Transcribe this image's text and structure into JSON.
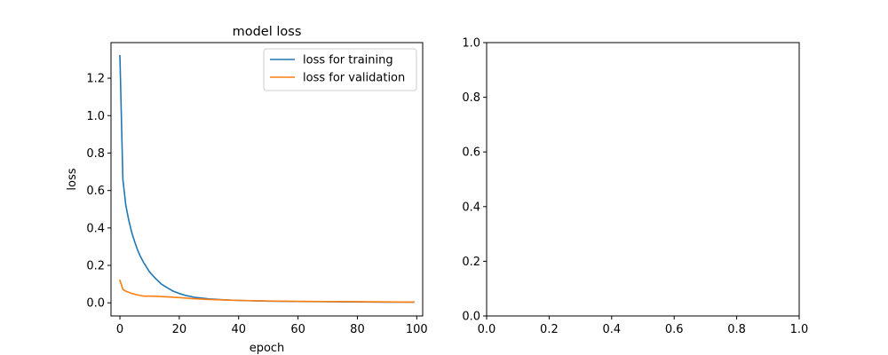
{
  "chart_data": [
    {
      "type": "line",
      "title": "model loss",
      "xlabel": "epoch",
      "ylabel": "loss",
      "xlim": [
        -3,
        102
      ],
      "ylim": [
        -0.07,
        1.39
      ],
      "xticks": [
        0,
        20,
        40,
        60,
        80,
        100
      ],
      "yticks": [
        0.0,
        0.2,
        0.4,
        0.6,
        0.8,
        1.0,
        1.2
      ],
      "xtick_labels": [
        "0",
        "20",
        "40",
        "60",
        "80",
        "100"
      ],
      "ytick_labels": [
        "0.0",
        "0.2",
        "0.4",
        "0.6",
        "0.8",
        "1.0",
        "1.2"
      ],
      "grid": false,
      "legend": "upper right",
      "series": [
        {
          "name": "loss for training",
          "color": "#1f77b4",
          "x": [
            0,
            1,
            2,
            3,
            4,
            5,
            6,
            7,
            8,
            10,
            12,
            14,
            16,
            18,
            20,
            22,
            25,
            30,
            35,
            40,
            45,
            50,
            60,
            70,
            80,
            90,
            99
          ],
          "y": [
            1.32,
            0.66,
            0.52,
            0.44,
            0.375,
            0.325,
            0.28,
            0.245,
            0.215,
            0.165,
            0.13,
            0.1,
            0.08,
            0.062,
            0.05,
            0.04,
            0.03,
            0.021,
            0.016,
            0.013,
            0.011,
            0.009,
            0.007,
            0.006,
            0.005,
            0.004,
            0.004
          ]
        },
        {
          "name": "loss for validation",
          "color": "#ff7f0e",
          "x": [
            0,
            1,
            2,
            4,
            6,
            8,
            10,
            12,
            15,
            20,
            25,
            30,
            40,
            50,
            60,
            70,
            80,
            90,
            99
          ],
          "y": [
            0.12,
            0.072,
            0.062,
            0.05,
            0.042,
            0.036,
            0.036,
            0.035,
            0.033,
            0.028,
            0.022,
            0.018,
            0.013,
            0.01,
            0.008,
            0.007,
            0.006,
            0.005,
            0.004
          ]
        }
      ]
    },
    {
      "type": "line",
      "title": "",
      "xlabel": "",
      "ylabel": "",
      "xlim": [
        0,
        1
      ],
      "ylim": [
        0,
        1
      ],
      "xticks": [
        0.0,
        0.2,
        0.4,
        0.6,
        0.8,
        1.0
      ],
      "yticks": [
        0.0,
        0.2,
        0.4,
        0.6,
        0.8,
        1.0
      ],
      "xtick_labels": [
        "0.0",
        "0.2",
        "0.4",
        "0.6",
        "0.8",
        "1.0"
      ],
      "ytick_labels": [
        "0.0",
        "0.2",
        "0.4",
        "0.6",
        "0.8",
        "1.0"
      ],
      "grid": false,
      "series": []
    }
  ]
}
